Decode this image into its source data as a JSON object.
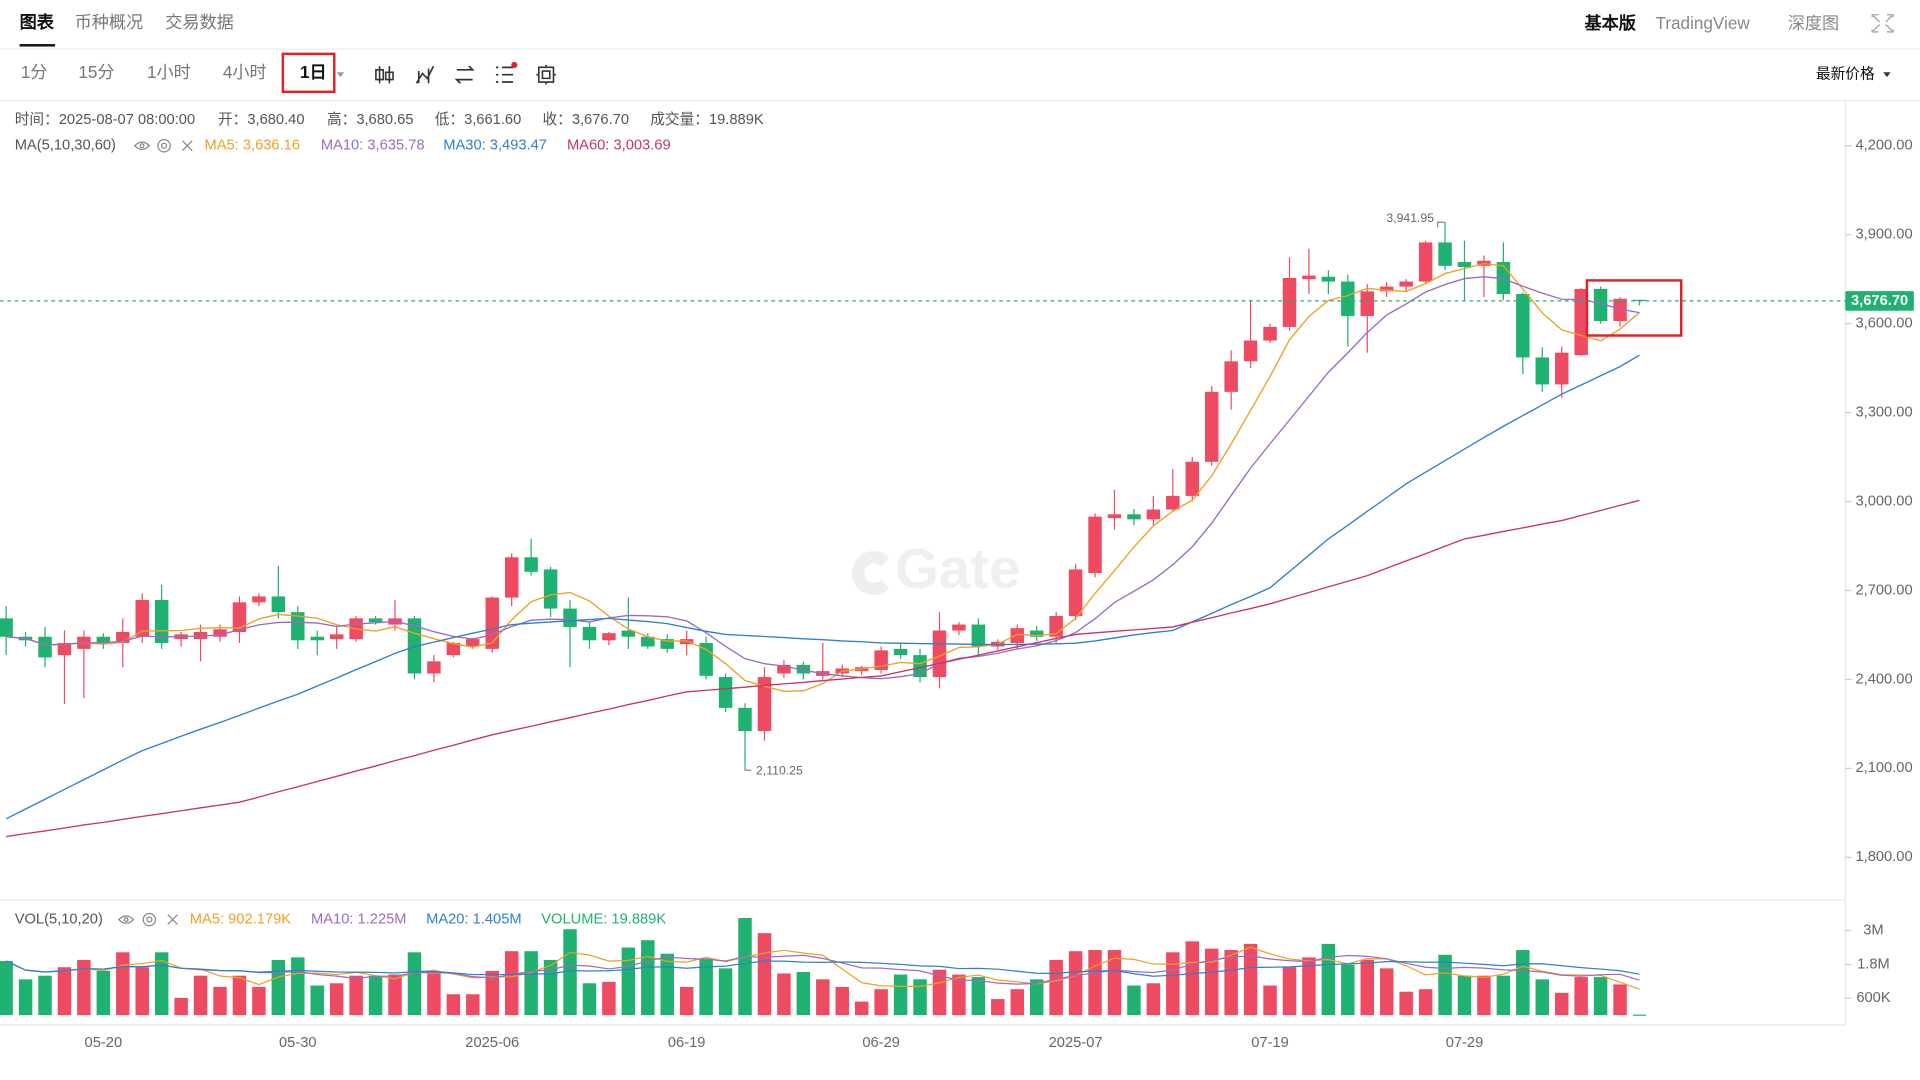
{
  "ui": {
    "tabs": [
      "图表",
      "币种概况",
      "交易数据"
    ],
    "right_tabs": [
      "基本版",
      "TradingView",
      "深度图"
    ],
    "intervals": [
      "1分",
      "15分",
      "1小时",
      "4小时",
      "1日"
    ],
    "price_type": "最新价格",
    "watermark": "Gate",
    "info": [
      "时间：2025-08-07 08:00:00",
      "开：3,680.40",
      "高：3,680.65",
      "低：3,661.60",
      "收：3,676.70",
      "成交量：19.889K"
    ]
  },
  "chart_data": [
    {
      "type": "candlestick",
      "up_color": "#ee4b62",
      "down_color": "#1fb170",
      "categories": [
        null,
        null,
        null,
        null,
        null,
        "05-20",
        null,
        null,
        null,
        null,
        null,
        null,
        null,
        null,
        null,
        "05-30",
        null,
        null,
        null,
        null,
        null,
        null,
        null,
        null,
        null,
        "2025-06",
        null,
        null,
        null,
        null,
        null,
        null,
        null,
        null,
        null,
        "06-19",
        null,
        null,
        null,
        null,
        null,
        null,
        null,
        null,
        null,
        "06-29",
        null,
        null,
        null,
        null,
        null,
        null,
        null,
        null,
        null,
        "2025-07",
        null,
        null,
        null,
        null,
        null,
        null,
        null,
        null,
        null,
        "07-19",
        null,
        null,
        null,
        null,
        null,
        null,
        null,
        null,
        null,
        "07-29",
        null,
        null,
        null,
        null,
        null,
        null,
        null,
        null,
        null
      ],
      "ohlc": [
        [
          2606,
          2647,
          2482,
          2544
        ],
        [
          2544,
          2560,
          2511,
          2532
        ],
        [
          2544,
          2577,
          2441,
          2474
        ],
        [
          2482,
          2565,
          2317,
          2523
        ],
        [
          2503,
          2565,
          2337,
          2544
        ],
        [
          2544,
          2556,
          2503,
          2523
        ],
        [
          2523,
          2606,
          2441,
          2560
        ],
        [
          2544,
          2690,
          2523,
          2668
        ],
        [
          2668,
          2720,
          2503,
          2523
        ],
        [
          2536,
          2560,
          2511,
          2552
        ],
        [
          2536,
          2585,
          2461,
          2560
        ],
        [
          2544,
          2585,
          2527,
          2569
        ],
        [
          2560,
          2680,
          2523,
          2660
        ],
        [
          2660,
          2690,
          2647,
          2680
        ],
        [
          2680,
          2783,
          2606,
          2627
        ],
        [
          2627,
          2647,
          2503,
          2532
        ],
        [
          2544,
          2565,
          2482,
          2532
        ],
        [
          2536,
          2577,
          2503,
          2552
        ],
        [
          2536,
          2614,
          2527,
          2606
        ],
        [
          2606,
          2614,
          2585,
          2593
        ],
        [
          2585,
          2668,
          2565,
          2606
        ],
        [
          2606,
          2614,
          2400,
          2420
        ],
        [
          2420,
          2482,
          2391,
          2461
        ],
        [
          2482,
          2527,
          2474,
          2523
        ],
        [
          2511,
          2540,
          2503,
          2536
        ],
        [
          2503,
          2680,
          2490,
          2676
        ],
        [
          2676,
          2825,
          2647,
          2812
        ],
        [
          2812,
          2874,
          2750,
          2763
        ],
        [
          2771,
          2780,
          2610,
          2639
        ],
        [
          2639,
          2668,
          2441,
          2577
        ],
        [
          2577,
          2593,
          2503,
          2532
        ],
        [
          2532,
          2560,
          2515,
          2556
        ],
        [
          2565,
          2676,
          2503,
          2544
        ],
        [
          2544,
          2556,
          2503,
          2511
        ],
        [
          2536,
          2552,
          2490,
          2503
        ],
        [
          2519,
          2565,
          2482,
          2536
        ],
        [
          2523,
          2544,
          2400,
          2412
        ],
        [
          2408,
          2420,
          2290,
          2304
        ],
        [
          2304,
          2320,
          2110.25,
          2226
        ],
        [
          2226,
          2441,
          2193,
          2408
        ],
        [
          2420,
          2465,
          2405,
          2449
        ],
        [
          2449,
          2460,
          2400,
          2420
        ],
        [
          2412,
          2523,
          2400,
          2428
        ],
        [
          2420,
          2450,
          2408,
          2437
        ],
        [
          2428,
          2445,
          2415,
          2441
        ],
        [
          2432,
          2511,
          2420,
          2498
        ],
        [
          2503,
          2523,
          2470,
          2482
        ],
        [
          2482,
          2503,
          2390,
          2408
        ],
        [
          2408,
          2627,
          2370,
          2565
        ],
        [
          2565,
          2593,
          2550,
          2585
        ],
        [
          2585,
          2606,
          2482,
          2511
        ],
        [
          2511,
          2535,
          2500,
          2527
        ],
        [
          2523,
          2585,
          2503,
          2573
        ],
        [
          2565,
          2580,
          2530,
          2544
        ],
        [
          2544,
          2627,
          2523,
          2614
        ],
        [
          2614,
          2790,
          2600,
          2771
        ],
        [
          2759,
          2960,
          2745,
          2949
        ],
        [
          2944,
          3040,
          2905,
          2957
        ],
        [
          2957,
          2975,
          2920,
          2940
        ],
        [
          2940,
          3019,
          2920,
          2973
        ],
        [
          2973,
          3110,
          2965,
          3019
        ],
        [
          3019,
          3150,
          3000,
          3134
        ],
        [
          3134,
          3390,
          3120,
          3370
        ],
        [
          3370,
          3510,
          3310,
          3473
        ],
        [
          3473,
          3680,
          3450,
          3543
        ],
        [
          3543,
          3600,
          3535,
          3589
        ],
        [
          3589,
          3824,
          3576,
          3754
        ],
        [
          3750,
          3853,
          3700,
          3762
        ],
        [
          3758,
          3780,
          3700,
          3742
        ],
        [
          3742,
          3765,
          3523,
          3626
        ],
        [
          3626,
          3733,
          3502,
          3709
        ],
        [
          3709,
          3740,
          3690,
          3725
        ],
        [
          3725,
          3750,
          3710,
          3742
        ],
        [
          3742,
          3880,
          3735,
          3874
        ],
        [
          3874,
          3941.95,
          3780,
          3795
        ],
        [
          3808,
          3880,
          3680,
          3791
        ],
        [
          3795,
          3830,
          3690,
          3812
        ],
        [
          3808,
          3874,
          3680,
          3700
        ],
        [
          3700,
          3705,
          3430,
          3486
        ],
        [
          3486,
          3520,
          3370,
          3395
        ],
        [
          3395,
          3523,
          3350,
          3502
        ],
        [
          3494,
          3720,
          3490,
          3717
        ],
        [
          3717,
          3725,
          3600,
          3609
        ],
        [
          3609,
          3690,
          3590,
          3684
        ],
        [
          3680.4,
          3680.65,
          3661.6,
          3676.7
        ]
      ],
      "ylim": [
        1656,
        4353
      ],
      "yticks": [
        {
          "value": 1800,
          "label": "1,800.00"
        },
        {
          "value": 2100,
          "label": "2,100.00"
        },
        {
          "value": 2400,
          "label": "2,400.00"
        },
        {
          "value": 2700,
          "label": "2,700.00"
        },
        {
          "value": 3000,
          "label": "3,000.00"
        },
        {
          "value": 3300,
          "label": "3,300.00"
        },
        {
          "value": 3600,
          "label": "3,600.00"
        },
        {
          "value": 3900,
          "label": "3,900.00"
        },
        {
          "value": 4200,
          "label": "4,200.00"
        }
      ],
      "last_price_label": "3,676.70",
      "annotations": [
        {
          "value": 3941.95,
          "label": "3,941.95"
        },
        {
          "value": 2110.25,
          "label": "2,110.25"
        }
      ],
      "indicator_label": "MA(5,10,30,60)",
      "ma": [
        {
          "label": "MA5: 3,636.16",
          "color": "#f0a020",
          "period": 5
        },
        {
          "label": "MA10: 3,635.78",
          "color": "#9b6bc4",
          "period": 10
        },
        {
          "label": "MA30: 3,493.47",
          "color": "#2f7fd0",
          "values": [
            1930,
            1963,
            1996,
            2029,
            2062,
            2095,
            2128,
            2160,
            2184,
            2208,
            2232,
            2255,
            2279,
            2303,
            2327,
            2350,
            2378,
            2405,
            2433,
            2460,
            2488,
            2511,
            2526,
            2541,
            2556,
            2570,
            2585,
            2590,
            2594,
            2598,
            2602,
            2606,
            2600,
            2595,
            2588,
            2575,
            2562,
            2552,
            2548,
            2545,
            2541,
            2537,
            2534,
            2530,
            2527,
            2523,
            2522,
            2521,
            2520,
            2519,
            2518,
            2518,
            2518,
            2519,
            2520,
            2522,
            2530,
            2540,
            2550,
            2558,
            2565,
            2594,
            2623,
            2652,
            2680,
            2709,
            2764,
            2819,
            2874,
            2920,
            2967,
            3013,
            3060,
            3099,
            3138,
            3177,
            3216,
            3254,
            3290,
            3326,
            3362,
            3393,
            3424,
            3455,
            3493.47
          ]
        },
        {
          "label": "MA60: 3,003.69",
          "color": "#c7346c",
          "values": [
            1870,
            1880,
            1889,
            1899,
            1909,
            1918,
            1928,
            1938,
            1947,
            1957,
            1967,
            1976,
            1986,
            2003,
            2021,
            2038,
            2056,
            2073,
            2091,
            2108,
            2126,
            2143,
            2161,
            2178,
            2196,
            2213,
            2228,
            2242,
            2257,
            2271,
            2286,
            2300,
            2315,
            2329,
            2344,
            2358,
            2363,
            2369,
            2374,
            2380,
            2385,
            2390,
            2396,
            2401,
            2407,
            2412,
            2426,
            2440,
            2454,
            2468,
            2482,
            2496,
            2510,
            2524,
            2538,
            2552,
            2557,
            2562,
            2567,
            2572,
            2577,
            2593,
            2608,
            2624,
            2639,
            2655,
            2674,
            2693,
            2712,
            2731,
            2750,
            2775,
            2800,
            2824,
            2849,
            2874,
            2886,
            2899,
            2911,
            2924,
            2936,
            2953,
            2970,
            2987,
            3003.69
          ]
        }
      ]
    },
    {
      "type": "volume",
      "values": [
        1.92,
        1.27,
        1.4,
        1.7,
        1.96,
        1.57,
        2.23,
        1.7,
        2.23,
        0.61,
        1.4,
        1.0,
        1.4,
        1.0,
        1.96,
        2.05,
        1.05,
        1.13,
        1.4,
        1.4,
        1.44,
        2.23,
        1.48,
        0.74,
        0.74,
        1.57,
        2.27,
        2.27,
        1.96,
        3.05,
        1.13,
        1.18,
        2.4,
        2.66,
        2.18,
        1.0,
        2.01,
        1.66,
        3.45,
        2.91,
        1.48,
        1.53,
        1.27,
        1.0,
        0.48,
        0.92,
        1.44,
        1.27,
        1.61,
        1.44,
        1.35,
        0.57,
        0.92,
        1.27,
        1.96,
        2.27,
        2.31,
        2.31,
        1.05,
        1.13,
        2.23,
        2.62,
        2.36,
        2.31,
        2.53,
        1.05,
        1.7,
        2.05,
        2.53,
        1.79,
        1.96,
        1.66,
        0.83,
        0.92,
        2.14,
        1.4,
        1.4,
        1.4,
        2.31,
        1.27,
        0.79,
        1.35,
        1.35,
        1.09,
        0.019889
      ],
      "ylim": [
        0,
        3.87
      ],
      "yticks": [
        {
          "value": 0.6,
          "label": "600K"
        },
        {
          "value": 1.8,
          "label": "1.8M"
        },
        {
          "value": 3,
          "label": "3M"
        }
      ],
      "indicator_label": "VOL(5,10,20)",
      "ma": [
        {
          "label": "MA5: 902.179K",
          "color": "#f0a020",
          "period": 5
        },
        {
          "label": "MA10: 1.225M",
          "color": "#9b6bc4",
          "period": 10
        },
        {
          "label": "MA20: 1.405M",
          "color": "#2f7fd0",
          "period": 20
        }
      ],
      "volume_label": "VOLUME: 19.889K",
      "volume_color": "#1fb170"
    }
  ]
}
